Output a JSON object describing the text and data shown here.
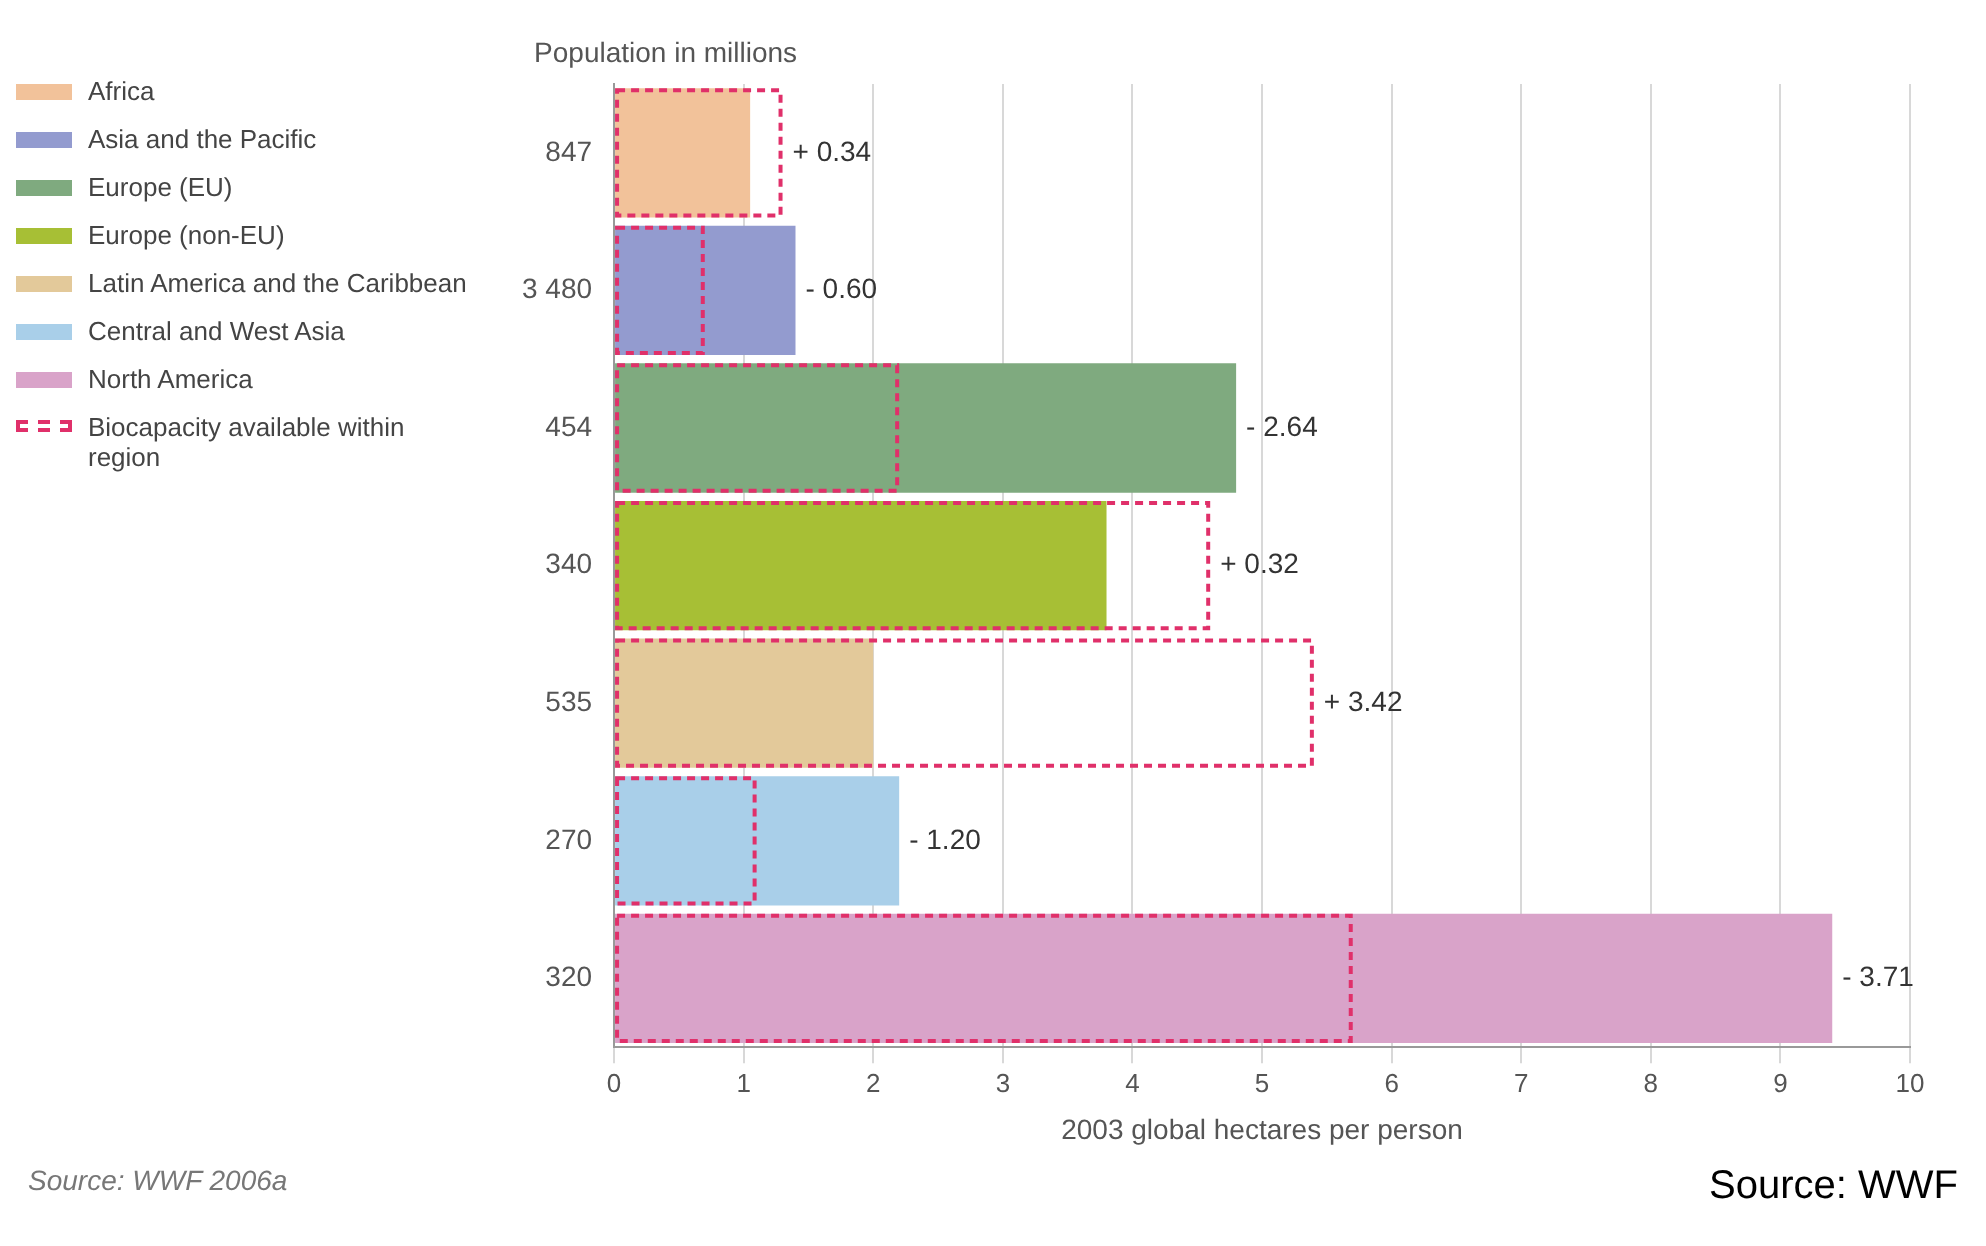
{
  "chart_data": {
    "type": "bar",
    "orientation": "horizontal",
    "ylabel": "Population in millions",
    "xlabel": "2003 global hectares per person",
    "categories": [
      "847",
      "3 480",
      "454",
      "340",
      "535",
      "270",
      "320"
    ],
    "series": [
      {
        "name": "Africa",
        "color": "#f2c29a",
        "values": [
          1.05,
          null,
          null,
          null,
          null,
          null,
          null
        ]
      },
      {
        "name": "Asia and the Pacific",
        "color": "#939bcf",
        "values": [
          null,
          1.4,
          null,
          null,
          null,
          null,
          null
        ]
      },
      {
        "name": "Europe (EU)",
        "color": "#7faa7f",
        "values": [
          null,
          null,
          4.8,
          null,
          null,
          null,
          null
        ]
      },
      {
        "name": "Europe (non-EU)",
        "color": "#a7bf35",
        "values": [
          null,
          null,
          null,
          3.8,
          null,
          null,
          null
        ]
      },
      {
        "name": "Latin America and the Caribbean",
        "color": "#e3c99a",
        "values": [
          null,
          null,
          null,
          null,
          2.0,
          null,
          null
        ]
      },
      {
        "name": "Central and West Asia",
        "color": "#a9cfe9",
        "values": [
          null,
          null,
          null,
          null,
          null,
          2.2,
          null
        ]
      },
      {
        "name": "North America",
        "color": "#d9a3c9",
        "values": [
          null,
          null,
          null,
          null,
          null,
          null,
          9.4
        ]
      },
      {
        "name": "Biocapacity available within region",
        "color": "#e0306a",
        "line_style": "dashed",
        "values": [
          1.3,
          0.7,
          2.2,
          4.6,
          5.4,
          1.1,
          5.7
        ]
      }
    ],
    "xlim": [
      0,
      10
    ],
    "xticks": [
      0,
      1,
      2,
      3,
      4,
      5,
      6,
      7,
      8,
      9,
      10
    ],
    "grid": "x",
    "legend": "left",
    "annotations": [
      {
        "text": "+ 0.34",
        "x": 1.3,
        "y": "847"
      },
      {
        "text": "- 0.60",
        "x": 1.4,
        "y": "3 480"
      },
      {
        "text": "- 2.64",
        "x": 4.8,
        "y": "454"
      },
      {
        "text": "+ 0.32",
        "x": 4.6,
        "y": "340"
      },
      {
        "text": "+ 3.42",
        "x": 5.4,
        "y": "535"
      },
      {
        "text": "- 1.20",
        "x": 2.2,
        "y": "270"
      },
      {
        "text": "- 3.71",
        "x": 9.4,
        "y": "320"
      },
      "Source: WWF 2006a",
      "Source: WWF"
    ]
  }
}
